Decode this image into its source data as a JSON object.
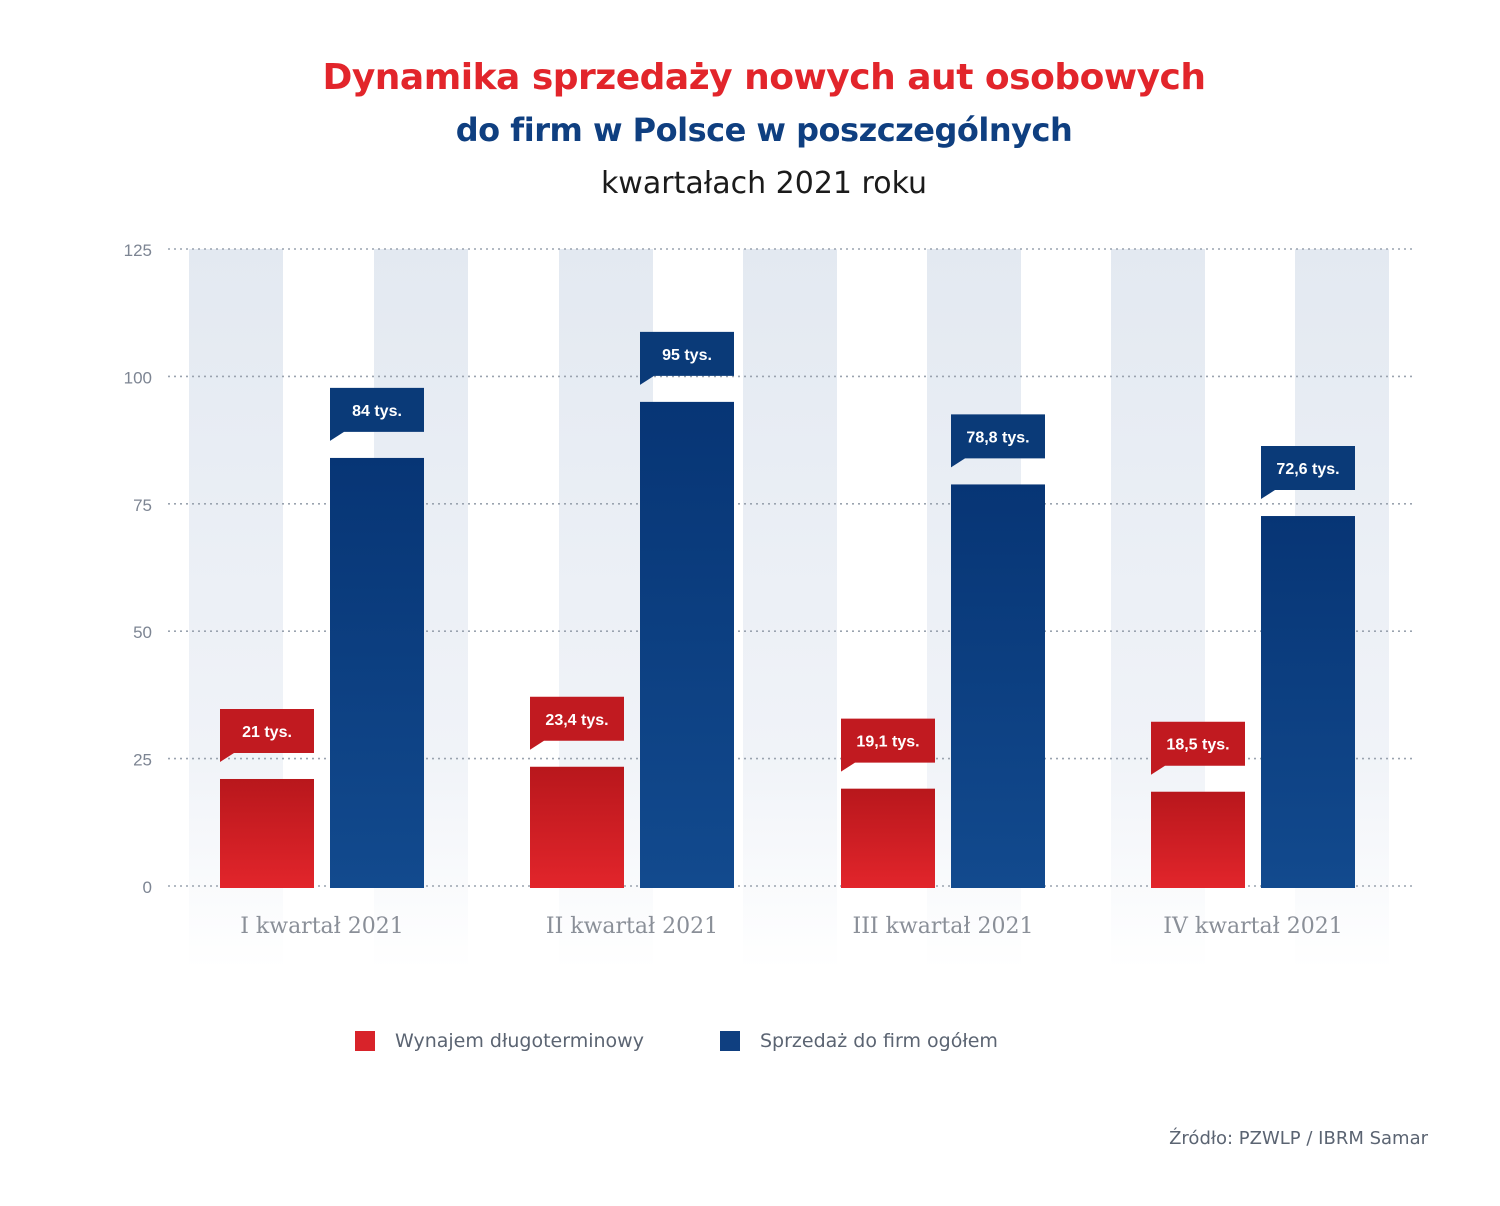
{
  "title": {
    "line1": "Dynamika sprzedaży nowych aut osobowych",
    "line2": "do firm w Polsce w poszczególnych",
    "line3": "kwartałach 2021 roku"
  },
  "colors": {
    "red": "#e2252b",
    "red_dark": "#b8171c",
    "blue": "#0f3f80",
    "blue_dark": "#073575",
    "band": "#e6ebf2",
    "axis_text": "#7d8593",
    "category_text": "#8a8f98"
  },
  "chart_data": {
    "type": "bar",
    "categories": [
      "I kwartał 2021",
      "II kwartał 2021",
      "III kwartał 2021",
      "IV kwartał 2021"
    ],
    "series": [
      {
        "name": "Wynajem długoterminowy",
        "color": "#e2252b",
        "values": [
          21,
          23.4,
          19.1,
          18.5
        ],
        "labels": [
          "21 tys.",
          "23,4 tys.",
          "19,1 tys.",
          "18,5 tys."
        ]
      },
      {
        "name": "Sprzedaż do firm ogółem",
        "color": "#0f3f80",
        "values": [
          84,
          95,
          78.8,
          72.6
        ],
        "labels": [
          "84 tys.",
          "95 tys.",
          "78,8 tys.",
          "72,6 tys."
        ]
      }
    ],
    "yticks": [
      0,
      25,
      50,
      75,
      100,
      125
    ],
    "ylim": [
      0,
      125
    ],
    "legend": "bottom",
    "grid": true
  },
  "source": "Źródło: PZWLP / IBRM Samar"
}
